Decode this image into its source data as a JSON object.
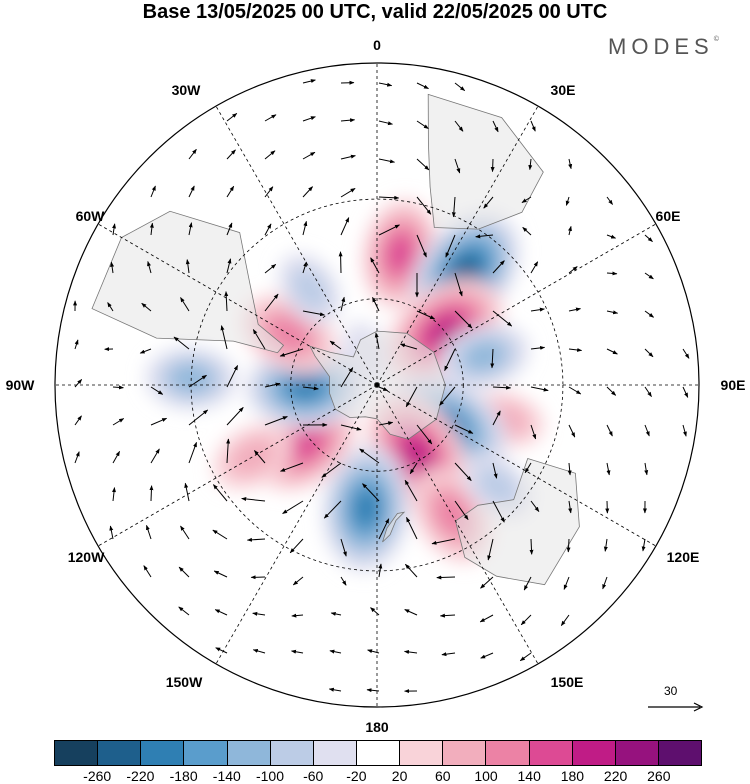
{
  "title": "Base 13/05/2025 00 UTC, valid 22/05/2025 00 UTC",
  "logo": {
    "text": "MODES",
    "mark": "©"
  },
  "longitude_labels": [
    "0",
    "30E",
    "60E",
    "90E",
    "120E",
    "150E",
    "180",
    "150W",
    "120W",
    "90W",
    "60W",
    "30W"
  ],
  "vector_scale": {
    "label": "30",
    "icon": "arrow-right-icon"
  },
  "colorbar": {
    "colors": [
      "#16405e",
      "#1e5f8c",
      "#2f7fb3",
      "#5a9dcc",
      "#8fb7da",
      "#bccce6",
      "#e0e0f0",
      "#ffffff",
      "#f9d3d9",
      "#f2aebd",
      "#ec82a5",
      "#dd4a94",
      "#c01c86",
      "#96127e",
      "#5e0f6e"
    ],
    "tick_labels": [
      "-260",
      "-220",
      "-180",
      "-140",
      "-100",
      "-60",
      "-20",
      "20",
      "60",
      "100",
      "140",
      "180",
      "220",
      "260"
    ]
  },
  "chart_data": {
    "type": "heatmap",
    "projection": "south polar stereographic",
    "units_label": "",
    "levels": [
      -260,
      -220,
      -180,
      -140,
      -100,
      -60,
      -20,
      20,
      60,
      100,
      140,
      180,
      220,
      260
    ],
    "anomaly_centers": [
      {
        "lon": 10,
        "lat": -45,
        "value": 170
      },
      {
        "lon": 38,
        "lat": -42,
        "value": -240
      },
      {
        "lon": 52,
        "lat": -60,
        "value": 230
      },
      {
        "lon": 75,
        "lat": -52,
        "value": -120
      },
      {
        "lon": 105,
        "lat": -45,
        "value": 80
      },
      {
        "lon": 120,
        "lat": -62,
        "value": -230
      },
      {
        "lon": 150,
        "lat": -62,
        "value": 230
      },
      {
        "lon": 150,
        "lat": -40,
        "value": 150
      },
      {
        "lon": 130,
        "lat": -38,
        "value": -80
      },
      {
        "lon": 185,
        "lat": -48,
        "value": -220
      },
      {
        "lon": 230,
        "lat": -58,
        "value": 180
      },
      {
        "lon": 240,
        "lat": -42,
        "value": 100
      },
      {
        "lon": 268,
        "lat": -65,
        "value": -200
      },
      {
        "lon": 272,
        "lat": -30,
        "value": -120
      },
      {
        "lon": 300,
        "lat": -55,
        "value": 150
      },
      {
        "lon": 325,
        "lat": -50,
        "value": -80
      },
      {
        "lon": 340,
        "lat": -78,
        "value": -40
      }
    ]
  }
}
